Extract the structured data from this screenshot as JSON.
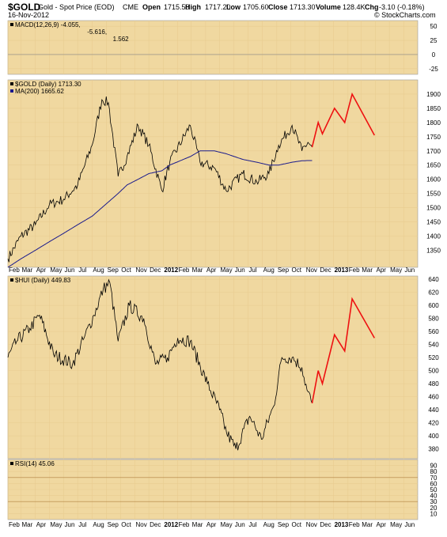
{
  "header": {
    "symbol": "$GOLD",
    "name": "Gold - Spot Price (EOD)",
    "exchange": "CME",
    "date": "16-Nov-2012",
    "open_label": "Open",
    "open_value": "1715.50",
    "high_label": "High",
    "high_value": "1717.20",
    "low_label": "Low",
    "low_value": "1705.60",
    "close_label": "Close",
    "close_value": "1713.30",
    "volume_label": "Volume",
    "volume_value": "128.4K",
    "chg_label": "Chg",
    "chg_value": "-3.10 (-0.18%)",
    "watermark": "© StockCharts.com"
  },
  "colors": {
    "panel_bg": "#f0d8a0",
    "grid": "#e8cc90",
    "price": "#000000",
    "ma": "#1a1a8c",
    "projection": "#ee1111",
    "macd_signal": "#ee1111",
    "macd_hist": "#6a9ad4"
  },
  "chart_data": [
    {
      "type": "line",
      "title": "MACD",
      "legend": [
        {
          "label": "MACD(12,26,9) -4.055,",
          "color": "#000000"
        },
        {
          "label": "-5.616,",
          "color": "#ee1111"
        },
        {
          "label": "1.562",
          "color": "#6a9ad4"
        }
      ],
      "yticks": [
        50,
        25,
        0,
        -25
      ],
      "ylim": [
        -35,
        60
      ]
    },
    {
      "type": "line",
      "title": "$GOLD (Daily) 1713.30",
      "legend": [
        {
          "label": "$GOLD (Daily) 1713.30",
          "color": "#000000"
        },
        {
          "label": "MA(200) 1665.62",
          "color": "#1a1a8c"
        }
      ],
      "yticks": [
        1350,
        1400,
        1450,
        1500,
        1550,
        1600,
        1650,
        1700,
        1750,
        1800,
        1850,
        1900
      ],
      "ylim": [
        1290,
        1950
      ],
      "x": [
        "2011-02-01",
        "2011-03-01",
        "2011-04-01",
        "2011-05-01",
        "2011-06-01",
        "2011-07-01",
        "2011-08-01",
        "2011-08-22",
        "2011-09-05",
        "2011-09-26",
        "2011-10-15",
        "2011-11-08",
        "2011-12-01",
        "2011-12-29",
        "2012-01-15",
        "2012-02-28",
        "2012-03-20",
        "2012-04-20",
        "2012-05-15",
        "2012-06-20",
        "2012-07-20",
        "2012-08-15",
        "2012-09-05",
        "2012-10-04",
        "2012-10-25",
        "2012-11-07",
        "2012-11-16"
      ],
      "series": [
        {
          "name": "$GOLD",
          "values": [
            1320,
            1400,
            1440,
            1510,
            1530,
            1580,
            1720,
            1880,
            1870,
            1610,
            1680,
            1790,
            1720,
            1560,
            1660,
            1790,
            1660,
            1640,
            1560,
            1620,
            1590,
            1620,
            1720,
            1790,
            1700,
            1730,
            1713
          ]
        },
        {
          "name": "MA(200)",
          "values": [
            1290,
            1320,
            1350,
            1380,
            1410,
            1440,
            1470,
            1500,
            1520,
            1550,
            1580,
            1600,
            1620,
            1630,
            1650,
            1680,
            1700,
            1700,
            1690,
            1670,
            1660,
            1650,
            1650,
            1660,
            1665,
            1666,
            1666
          ]
        }
      ],
      "projection": {
        "x": [
          "2012-11-16",
          "2012-11-29",
          "2012-12-08",
          "2013-01-03",
          "2013-01-25",
          "2013-02-10",
          "2013-03-30"
        ],
        "values": [
          1713,
          1800,
          1760,
          1850,
          1800,
          1900,
          1755
        ]
      },
      "xticks": [
        "Feb",
        "Mar",
        "Apr",
        "May",
        "Jun",
        "Jul",
        "Aug",
        "Sep",
        "Oct",
        "Nov",
        "Dec",
        "2012",
        "Feb",
        "Mar",
        "Apr",
        "May",
        "Jun",
        "Jul",
        "Aug",
        "Sep",
        "Oct",
        "Nov",
        "Dec",
        "2013",
        "Feb",
        "Mar",
        "Apr",
        "May",
        "Jun"
      ]
    },
    {
      "type": "line",
      "title": "$HUI (Daily) 449.83",
      "legend": [
        {
          "label": "$HUI (Daily) 449.83",
          "color": "#000000"
        }
      ],
      "yticks": [
        380,
        400,
        420,
        440,
        460,
        480,
        500,
        520,
        540,
        560,
        580,
        600,
        620,
        640
      ],
      "ylim": [
        365,
        645
      ],
      "x": [
        "2011-02-01",
        "2011-02-20",
        "2011-03-20",
        "2011-04-10",
        "2011-05-10",
        "2011-06-20",
        "2011-07-15",
        "2011-08-05",
        "2011-08-25",
        "2011-09-08",
        "2011-09-26",
        "2011-10-20",
        "2011-11-20",
        "2011-12-15",
        "2012-01-10",
        "2012-02-01",
        "2012-02-28",
        "2012-04-05",
        "2012-05-01",
        "2012-05-16",
        "2012-06-05",
        "2012-07-05",
        "2012-07-30",
        "2012-08-25",
        "2012-09-12",
        "2012-10-04",
        "2012-10-25",
        "2012-11-05",
        "2012-11-16"
      ],
      "series": [
        {
          "name": "$HUI",
          "values": [
            520,
            545,
            565,
            585,
            525,
            510,
            550,
            585,
            625,
            635,
            545,
            600,
            580,
            510,
            520,
            550,
            545,
            480,
            440,
            405,
            380,
            430,
            395,
            445,
            520,
            520,
            505,
            470,
            450
          ]
        }
      ],
      "projection": {
        "x": [
          "2012-11-16",
          "2012-11-29",
          "2012-12-08",
          "2013-01-03",
          "2013-01-25",
          "2013-02-10",
          "2013-03-30"
        ],
        "values": [
          450,
          500,
          480,
          555,
          530,
          610,
          550
        ]
      },
      "xticks": [
        "Feb",
        "Mar",
        "Apr",
        "May",
        "Jun",
        "Jul",
        "Aug",
        "Sep",
        "Oct",
        "Nov",
        "Dec",
        "2012",
        "Feb",
        "Mar",
        "Apr",
        "May",
        "Jun",
        "Jul",
        "Aug",
        "Sep",
        "Oct",
        "Nov",
        "Dec",
        "2013",
        "Feb",
        "Mar",
        "Apr",
        "May",
        "Jun"
      ]
    },
    {
      "type": "line",
      "title": "RSI(14) 45.06",
      "legend": [
        {
          "label": "RSI(14) 45.06",
          "color": "#000000"
        }
      ],
      "yticks": [
        90,
        80,
        70,
        60,
        50,
        40,
        30,
        20,
        10
      ],
      "ylim": [
        0,
        100
      ],
      "xticks": [
        "Feb",
        "Mar",
        "Apr",
        "May",
        "Jun",
        "Jul",
        "Aug",
        "Sep",
        "Oct",
        "Nov",
        "Dec",
        "2012",
        "Feb",
        "Mar",
        "Apr",
        "May",
        "Jun",
        "Jul",
        "Aug",
        "Sep",
        "Oct",
        "Nov",
        "Dec",
        "2013",
        "Feb",
        "Mar",
        "Apr",
        "May",
        "Jun"
      ]
    }
  ]
}
